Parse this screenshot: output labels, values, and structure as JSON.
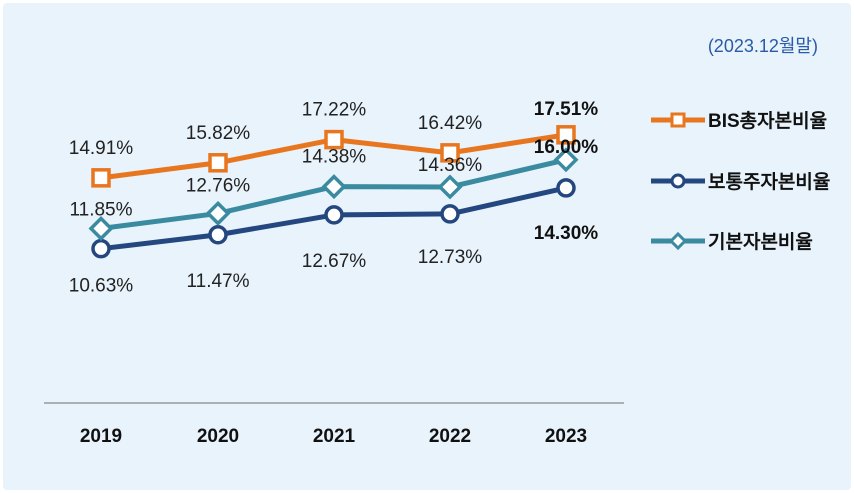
{
  "chart_data": {
    "type": "line",
    "period_note": "(2023.12월말)",
    "categories": [
      "2019",
      "2020",
      "2021",
      "2022",
      "2023"
    ],
    "ylim": [
      9.5,
      18.5
    ],
    "grid": false,
    "legend_position": "right",
    "series": [
      {
        "name": "BIS총자본비율",
        "values": [
          14.91,
          15.82,
          17.22,
          16.42,
          17.51
        ],
        "labels": [
          "14.91%",
          "15.82%",
          "17.22%",
          "16.42%",
          "17.51%"
        ],
        "color": "#e8761e",
        "marker": "square"
      },
      {
        "name": "보통주자본비율",
        "values": [
          10.63,
          11.47,
          12.67,
          12.73,
          14.3
        ],
        "labels": [
          "10.63%",
          "11.47%",
          "12.67%",
          "12.73%",
          "14.30%"
        ],
        "color": "#24477f",
        "marker": "circle"
      },
      {
        "name": "기본자본비율",
        "values": [
          11.85,
          12.76,
          14.38,
          14.36,
          16.0
        ],
        "labels": [
          "11.85%",
          "12.76%",
          "14.38%",
          "14.36%",
          "16.00%"
        ],
        "color": "#3a8aa0",
        "marker": "diamond"
      }
    ]
  }
}
